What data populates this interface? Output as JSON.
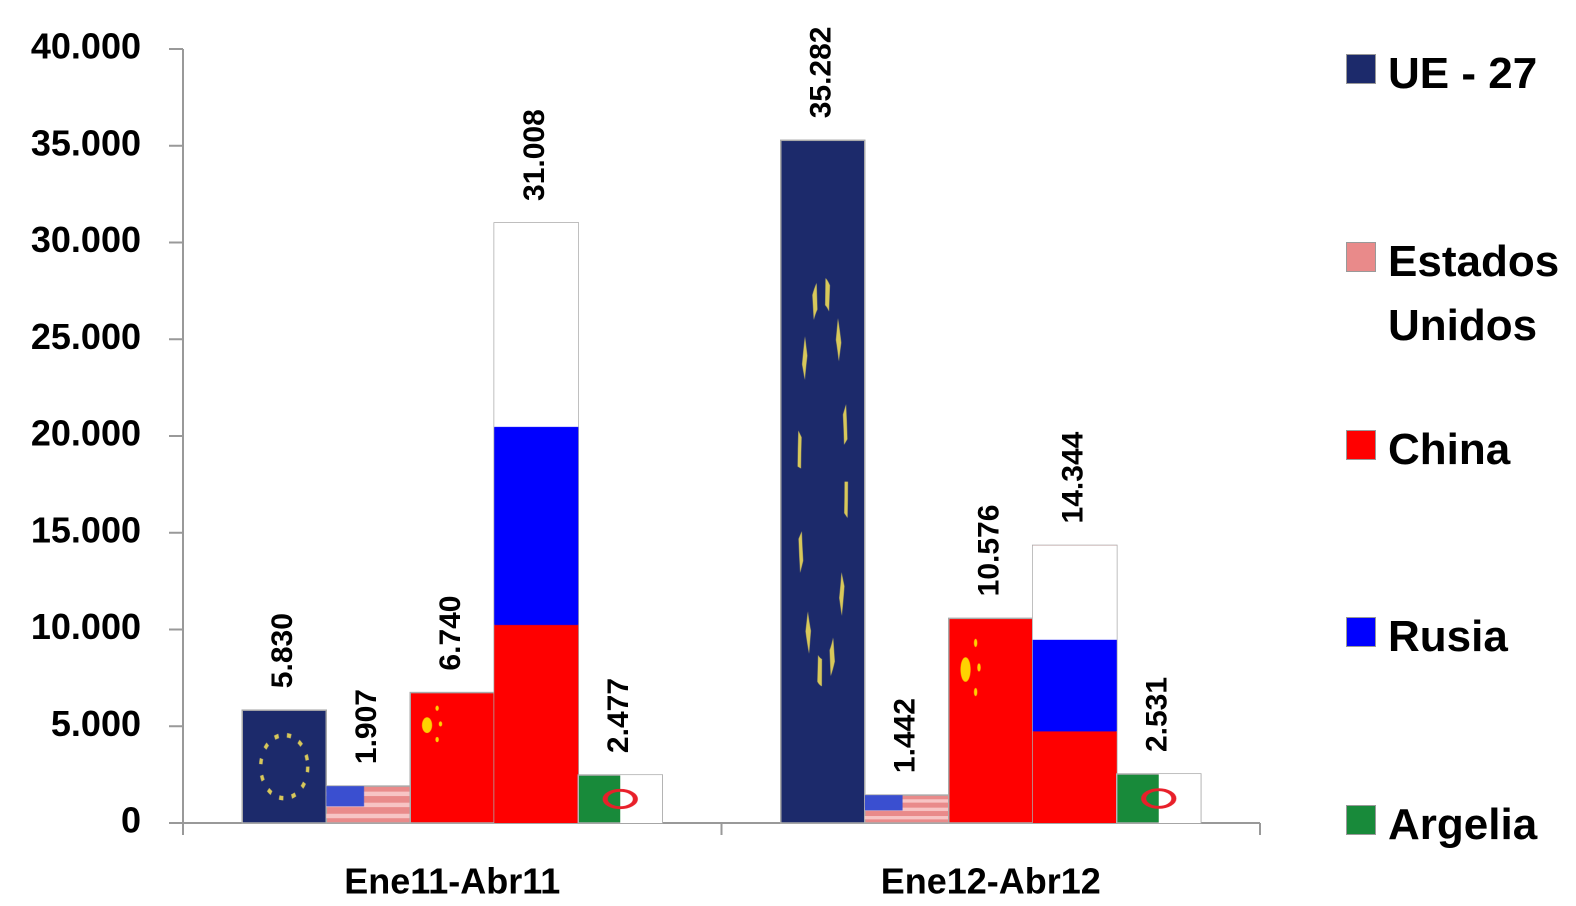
{
  "chart_data": {
    "type": "bar",
    "categories": [
      "Ene11-Abr11",
      "Ene12-Abr12"
    ],
    "series": [
      {
        "name": "UE - 27",
        "color": "#1c2a6b",
        "values": [
          5830,
          35282
        ],
        "value_labels": [
          "5.830",
          "35.282"
        ]
      },
      {
        "name": "Estados Unidos",
        "color": "#e98a8a",
        "values": [
          1907,
          1442
        ],
        "value_labels": [
          "1.907",
          "1.442"
        ]
      },
      {
        "name": "China",
        "color": "#ff0000",
        "values": [
          6740,
          10576
        ],
        "value_labels": [
          "6.740",
          "10.576"
        ]
      },
      {
        "name": "Rusia",
        "color": "#0000ff",
        "values": [
          31008,
          14344
        ],
        "value_labels": [
          "31.008",
          "14.344"
        ]
      },
      {
        "name": "Argelia",
        "color": "#188a3a",
        "values": [
          2477,
          2531
        ],
        "value_labels": [
          "2.477",
          "2.531"
        ]
      }
    ],
    "ylim": [
      0,
      40000
    ],
    "yticks": [
      0,
      {
        "value": 5000,
        "label": "5.000"
      },
      {
        "value": 10000,
        "label": "10.000"
      },
      {
        "value": 15000,
        "label": "15.000"
      },
      {
        "value": 20000,
        "label": "20.000"
      },
      {
        "value": 25000,
        "label": "25.000"
      },
      {
        "value": 30000,
        "label": "30.000"
      },
      {
        "value": 35000,
        "label": "35.000"
      },
      {
        "value": 40000,
        "label": "40.000"
      }
    ],
    "grid": false,
    "legend": "right"
  }
}
